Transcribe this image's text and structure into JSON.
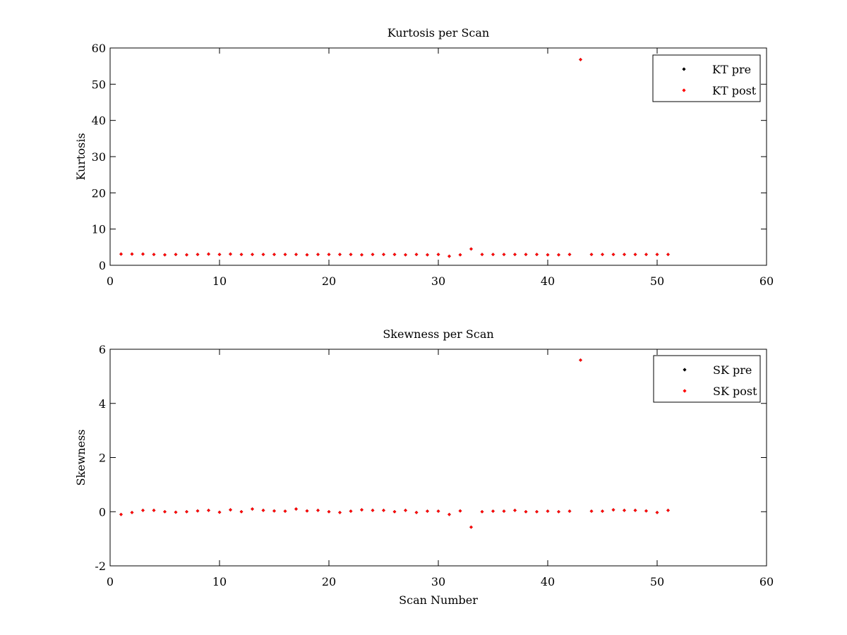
{
  "chart_data": [
    {
      "type": "scatter",
      "title": "Kurtosis per Scan",
      "xlabel": "",
      "ylabel": "Kurtosis",
      "xlim": [
        0,
        60
      ],
      "ylim": [
        0,
        60
      ],
      "xticks": [
        0,
        10,
        20,
        30,
        40,
        50,
        60
      ],
      "yticks": [
        0,
        10,
        20,
        30,
        40,
        50,
        60
      ],
      "grid": false,
      "legend_placement": "top-right",
      "x": [
        1,
        2,
        3,
        4,
        5,
        6,
        7,
        8,
        9,
        10,
        11,
        12,
        13,
        14,
        15,
        16,
        17,
        18,
        19,
        20,
        21,
        22,
        23,
        24,
        25,
        26,
        27,
        28,
        29,
        30,
        31,
        32,
        33,
        34,
        35,
        36,
        37,
        38,
        39,
        40,
        41,
        42,
        43,
        44,
        45,
        46,
        47,
        48,
        49,
        50,
        51
      ],
      "series": [
        {
          "name": "KT pre",
          "color": "#000000",
          "values": [
            3.1,
            3.1,
            3.1,
            3.0,
            2.9,
            3.0,
            2.9,
            3.0,
            3.1,
            3.0,
            3.1,
            3.0,
            3.0,
            3.0,
            3.0,
            3.0,
            3.0,
            2.9,
            3.0,
            3.0,
            3.0,
            3.0,
            2.9,
            3.0,
            3.0,
            3.0,
            2.9,
            3.0,
            2.9,
            3.0,
            2.5,
            2.9,
            4.5,
            3.0,
            3.0,
            3.0,
            3.0,
            3.0,
            3.0,
            2.9,
            2.9,
            3.0,
            56.8,
            3.0,
            3.0,
            3.0,
            3.0,
            3.0,
            3.0,
            3.0,
            3.0
          ]
        },
        {
          "name": "KT post",
          "color": "#ff0000",
          "values": [
            3.1,
            3.1,
            3.1,
            3.0,
            2.9,
            3.0,
            2.9,
            3.0,
            3.1,
            3.0,
            3.1,
            3.0,
            3.0,
            3.0,
            3.0,
            3.0,
            3.0,
            2.9,
            3.0,
            3.0,
            3.0,
            3.0,
            2.9,
            3.0,
            3.0,
            3.0,
            2.9,
            3.0,
            2.9,
            3.0,
            2.5,
            2.9,
            4.5,
            3.0,
            3.0,
            3.0,
            3.0,
            3.0,
            3.0,
            2.9,
            2.9,
            3.0,
            56.8,
            3.0,
            3.0,
            3.0,
            3.0,
            3.0,
            3.0,
            3.0,
            3.0
          ]
        }
      ]
    },
    {
      "type": "scatter",
      "title": "Skewness per Scan",
      "xlabel": "Scan Number",
      "ylabel": "Skewness",
      "xlim": [
        0,
        60
      ],
      "ylim": [
        -2,
        6
      ],
      "xticks": [
        0,
        10,
        20,
        30,
        40,
        50,
        60
      ],
      "yticks": [
        -2,
        0,
        2,
        4,
        6
      ],
      "grid": false,
      "legend_placement": "top-right",
      "x": [
        1,
        2,
        3,
        4,
        5,
        6,
        7,
        8,
        9,
        10,
        11,
        12,
        13,
        14,
        15,
        16,
        17,
        18,
        19,
        20,
        21,
        22,
        23,
        24,
        25,
        26,
        27,
        28,
        29,
        30,
        31,
        32,
        33,
        34,
        35,
        36,
        37,
        38,
        39,
        40,
        41,
        42,
        43,
        44,
        45,
        46,
        47,
        48,
        49,
        50,
        51
      ],
      "series": [
        {
          "name": "SK pre",
          "color": "#000000",
          "values": [
            -0.1,
            -0.03,
            0.05,
            0.05,
            0.0,
            -0.02,
            0.0,
            0.03,
            0.05,
            -0.02,
            0.07,
            0.0,
            0.1,
            0.05,
            0.03,
            0.02,
            0.1,
            0.03,
            0.05,
            0.0,
            -0.03,
            0.02,
            0.07,
            0.05,
            0.05,
            0.0,
            0.05,
            -0.03,
            0.02,
            0.02,
            -0.1,
            0.03,
            -0.57,
            0.0,
            0.02,
            0.02,
            0.05,
            0.0,
            0.0,
            0.02,
            0.0,
            0.02,
            5.6,
            0.02,
            0.02,
            0.07,
            0.05,
            0.05,
            0.03,
            -0.03,
            0.05
          ]
        },
        {
          "name": "SK post",
          "color": "#ff0000",
          "values": [
            -0.1,
            -0.03,
            0.05,
            0.05,
            0.0,
            -0.02,
            0.0,
            0.03,
            0.05,
            -0.02,
            0.07,
            0.0,
            0.1,
            0.05,
            0.03,
            0.02,
            0.1,
            0.03,
            0.05,
            0.0,
            -0.03,
            0.02,
            0.07,
            0.05,
            0.05,
            0.0,
            0.05,
            -0.03,
            0.02,
            0.02,
            -0.1,
            0.03,
            -0.57,
            0.0,
            0.02,
            0.02,
            0.05,
            0.0,
            0.0,
            0.02,
            0.0,
            0.02,
            5.6,
            0.02,
            0.02,
            0.07,
            0.05,
            0.05,
            0.03,
            -0.03,
            0.05
          ]
        }
      ]
    }
  ]
}
